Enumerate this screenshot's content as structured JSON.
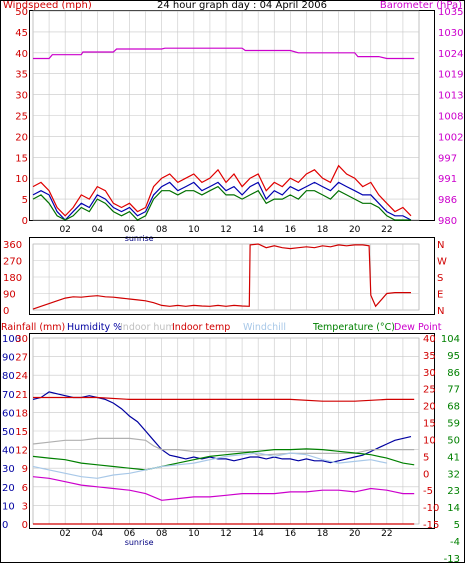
{
  "chart_data": [
    {
      "type": "line",
      "title": "24 hour graph day : 04 April 2006",
      "left_label": "Windspeed (mph)",
      "right_label": "Barometer (hPa)",
      "yticks_left": [
        "0",
        "5",
        "10",
        "15",
        "20",
        "25",
        "30",
        "35",
        "40",
        "45",
        "50"
      ],
      "ylim_left": [
        0,
        50
      ],
      "yticks_right": [
        "980",
        "986",
        "991",
        "997",
        "1002",
        "1008",
        "1013",
        "1019",
        "1024",
        "1030",
        "1035"
      ],
      "ylim_right": [
        980,
        1035
      ],
      "xticks": [
        "02",
        "04",
        "06",
        "08",
        "10",
        "12",
        "14",
        "16",
        "18",
        "20",
        "22"
      ],
      "sunrise_label": "sunrise",
      "grid": true,
      "series": [
        {
          "color": "#e00000",
          "axis": "left",
          "x": [
            0,
            0.5,
            1,
            1.5,
            2,
            2.5,
            3,
            3.5,
            4,
            4.5,
            5,
            5.5,
            6,
            6.5,
            7,
            7.5,
            8,
            8.5,
            9,
            9.5,
            10,
            10.5,
            11,
            11.5,
            12,
            12.5,
            13,
            13.5,
            14,
            14.5,
            15,
            15.5,
            16,
            16.5,
            17,
            17.5,
            18,
            18.5,
            19,
            19.5,
            20,
            20.5,
            21,
            21.5,
            22,
            22.5,
            23,
            23.5
          ],
          "y": [
            8,
            9,
            7,
            3,
            1,
            3,
            6,
            5,
            8,
            7,
            4,
            3,
            4,
            2,
            3,
            8,
            10,
            11,
            9,
            10,
            11,
            9,
            10,
            12,
            9,
            11,
            8,
            10,
            11,
            7,
            9,
            8,
            10,
            9,
            11,
            12,
            10,
            9,
            13,
            11,
            10,
            8,
            9,
            6,
            4,
            2,
            3,
            1
          ]
        },
        {
          "color": "#0000b0",
          "axis": "left",
          "x": [
            0,
            0.5,
            1,
            1.5,
            2,
            2.5,
            3,
            3.5,
            4,
            4.5,
            5,
            5.5,
            6,
            6.5,
            7,
            7.5,
            8,
            8.5,
            9,
            9.5,
            10,
            10.5,
            11,
            11.5,
            12,
            12.5,
            13,
            13.5,
            14,
            14.5,
            15,
            15.5,
            16,
            16.5,
            17,
            17.5,
            18,
            18.5,
            19,
            19.5,
            20,
            20.5,
            21,
            21.5,
            22,
            22.5,
            23,
            23.5
          ],
          "y": [
            6,
            7,
            6,
            2,
            0,
            2,
            4,
            3,
            6,
            5,
            3,
            2,
            3,
            1,
            2,
            6,
            8,
            9,
            7,
            8,
            9,
            7,
            8,
            9,
            7,
            8,
            6,
            8,
            9,
            5,
            7,
            6,
            8,
            7,
            8,
            9,
            8,
            7,
            9,
            8,
            7,
            6,
            6,
            4,
            2,
            1,
            1,
            0
          ]
        },
        {
          "color": "#007000",
          "axis": "left",
          "x": [
            0,
            0.5,
            1,
            1.5,
            2,
            2.5,
            3,
            3.5,
            4,
            4.5,
            5,
            5.5,
            6,
            6.5,
            7,
            7.5,
            8,
            8.5,
            9,
            9.5,
            10,
            10.5,
            11,
            11.5,
            12,
            12.5,
            13,
            13.5,
            14,
            14.5,
            15,
            15.5,
            16,
            16.5,
            17,
            17.5,
            18,
            18.5,
            19,
            19.5,
            20,
            20.5,
            21,
            21.5,
            22,
            22.5,
            23,
            23.5
          ],
          "y": [
            5,
            6,
            4,
            1,
            0,
            1,
            3,
            2,
            5,
            4,
            2,
            1,
            2,
            0,
            1,
            5,
            7,
            7,
            6,
            7,
            7,
            6,
            7,
            8,
            6,
            6,
            5,
            6,
            7,
            4,
            5,
            5,
            6,
            5,
            7,
            7,
            6,
            5,
            7,
            6,
            5,
            4,
            4,
            3,
            1,
            0,
            0,
            0
          ]
        },
        {
          "color": "#cc00cc",
          "axis": "right",
          "x": [
            0,
            1,
            1.2,
            2,
            2.3,
            3,
            3.1,
            5,
            5.2,
            8,
            8.2,
            13,
            13.2,
            16,
            16.5,
            20,
            20.2,
            21.5,
            22,
            23.7
          ],
          "y": [
            1022.5,
            1022.5,
            1023.5,
            1023.5,
            1023.5,
            1023.5,
            1024.2,
            1024.2,
            1025,
            1025,
            1025.2,
            1025.2,
            1024.6,
            1024.6,
            1024,
            1024,
            1023,
            1023,
            1022.5,
            1022.5
          ]
        }
      ]
    },
    {
      "type": "line",
      "right_labels": [
        "N",
        "W",
        "S",
        "E",
        "N"
      ],
      "yticks_left": [
        "0",
        "90",
        "180",
        "270",
        "360"
      ],
      "ylim_left": [
        0,
        360
      ],
      "xticks": [],
      "grid": true,
      "series": [
        {
          "color": "#d00000",
          "axis": "left",
          "x": [
            0,
            0.5,
            1,
            1.5,
            2,
            2.5,
            3,
            3.5,
            4,
            4.5,
            5,
            5.5,
            6,
            6.5,
            7,
            7.5,
            8,
            8.5,
            9,
            9.5,
            10,
            10.5,
            11,
            11.5,
            12,
            12.5,
            13,
            13.45,
            13.5,
            14,
            14.5,
            15,
            15.5,
            16,
            16.5,
            17,
            17.5,
            18,
            18.5,
            19,
            19.5,
            20,
            20.5,
            20.9,
            21,
            21.3,
            21.5,
            22,
            22.5,
            23,
            23.5
          ],
          "y": [
            5,
            20,
            35,
            50,
            65,
            72,
            70,
            75,
            78,
            72,
            70,
            65,
            60,
            55,
            50,
            40,
            25,
            20,
            25,
            20,
            25,
            22,
            20,
            25,
            20,
            25,
            22,
            20,
            355,
            360,
            340,
            350,
            340,
            335,
            340,
            345,
            340,
            350,
            345,
            355,
            350,
            355,
            355,
            350,
            80,
            20,
            40,
            90,
            95,
            95,
            95
          ]
        }
      ]
    },
    {
      "type": "line",
      "left_labels": [
        "Rainfall (mm)",
        "Humidity %",
        "Indoor hum",
        "Indoor temp",
        "Windchill",
        "Temperature (°C)",
        "Dew Point"
      ],
      "label_colors": [
        "#d00000",
        "#0000a0",
        "#c0c0c0",
        "#d00000",
        "#a8c8e8",
        "#008000",
        "#cc00cc"
      ],
      "yticks_hum": [
        "0",
        "10",
        "20",
        "30",
        "40",
        "50",
        "60",
        "70",
        "80",
        "90",
        "100"
      ],
      "yticks_rain": [
        "0",
        "3",
        "6",
        "9",
        "12",
        "15",
        "18",
        "21",
        "24",
        "27",
        "30"
      ],
      "ylim_hum": [
        0,
        100
      ],
      "yticks_temp_c": [
        "-15",
        "-10",
        "-5",
        "0",
        "5",
        "10",
        "15",
        "20",
        "25",
        "30",
        "35",
        "40"
      ],
      "yticks_temp_f": [
        "-13",
        "-4",
        "5",
        "14",
        "23",
        "32",
        "41",
        "50",
        "59",
        "68",
        "77",
        "86",
        "95",
        "104"
      ],
      "ylim_temp": [
        -15,
        40
      ],
      "xticks": [
        "02",
        "04",
        "06",
        "08",
        "10",
        "12",
        "14",
        "16",
        "18",
        "20",
        "22"
      ],
      "sunrise_label": "sunrise",
      "grid": true,
      "series": [
        {
          "color": "#0000a0",
          "axis": "hum",
          "x": [
            0,
            0.5,
            1,
            1.5,
            2,
            2.5,
            3,
            3.5,
            4,
            4.5,
            5,
            5.5,
            6,
            6.5,
            7,
            7.5,
            8,
            8.5,
            9,
            9.5,
            10,
            10.5,
            11,
            11.5,
            12,
            12.5,
            13,
            13.5,
            14,
            14.5,
            15,
            15.5,
            16,
            16.5,
            17,
            17.5,
            18,
            18.5,
            19,
            19.5,
            20,
            20.5,
            21,
            21.5,
            22,
            22.5,
            23,
            23.5
          ],
          "y": [
            67,
            68,
            71,
            70,
            69,
            68,
            68,
            69,
            68,
            67,
            65,
            62,
            58,
            55,
            50,
            45,
            40,
            37,
            36,
            35,
            36,
            35,
            36,
            35,
            35,
            34,
            35,
            36,
            36,
            35,
            36,
            35,
            35,
            34,
            35,
            34,
            34,
            33,
            34,
            35,
            36,
            37,
            39,
            41,
            43,
            45,
            46,
            47
          ]
        },
        {
          "color": "#d00000",
          "axis": "hum",
          "x": [
            0,
            2,
            4,
            6,
            8,
            10,
            12,
            14,
            16,
            18,
            20,
            22,
            23.7
          ],
          "y": [
            68,
            68,
            68,
            67,
            67,
            67,
            67,
            67,
            67,
            66,
            66,
            67,
            67
          ]
        },
        {
          "color": "#b0b0b0",
          "axis": "hum",
          "x": [
            0,
            1,
            2,
            3,
            4,
            5,
            6,
            7,
            7.5,
            8,
            9,
            10,
            12,
            13.5,
            14,
            16,
            18,
            20,
            21,
            22,
            23.7
          ],
          "y": [
            43,
            44,
            45,
            45,
            46,
            46,
            46,
            45,
            42,
            40,
            40,
            39,
            39,
            39,
            37,
            38,
            38,
            38,
            40,
            40,
            40
          ]
        },
        {
          "color": "#008000",
          "axis": "temp",
          "x": [
            0,
            1,
            2,
            3,
            4,
            5,
            6,
            7,
            8,
            9,
            10,
            11,
            12,
            13,
            14,
            15,
            16,
            17,
            18,
            19,
            20,
            21,
            22,
            23,
            23.7
          ],
          "y": [
            5,
            4.5,
            4,
            3,
            2.5,
            2,
            1.5,
            1,
            2,
            3,
            4,
            5,
            5.5,
            6,
            6.5,
            7,
            7,
            7.2,
            7,
            6.5,
            6,
            5.5,
            4.5,
            3,
            2.5
          ]
        },
        {
          "color": "#a8c8e8",
          "axis": "temp",
          "x": [
            0,
            1,
            2,
            3,
            4,
            5,
            6,
            7,
            8,
            9,
            10,
            11,
            12,
            13,
            14,
            15,
            16,
            17,
            18,
            19,
            20,
            21,
            22
          ],
          "y": [
            2,
            1,
            0,
            -1,
            -1.5,
            -0.5,
            0,
            1,
            2,
            2.5,
            3,
            4,
            5,
            5.5,
            6,
            5,
            6,
            5.5,
            4,
            3,
            3.5,
            4,
            3
          ]
        },
        {
          "color": "#cc00cc",
          "axis": "temp",
          "x": [
            0,
            1,
            2,
            3,
            4,
            5,
            6,
            7,
            8,
            9,
            10,
            11,
            12,
            13,
            14,
            15,
            16,
            17,
            18,
            19,
            20,
            21,
            22,
            22.5,
            23,
            23.7
          ],
          "y": [
            -1,
            -1.5,
            -2.5,
            -3.5,
            -4,
            -4.5,
            -5,
            -6,
            -8,
            -7.5,
            -7,
            -7,
            -6.5,
            -6,
            -6,
            -6,
            -5.5,
            -5.5,
            -5,
            -5,
            -5.5,
            -4.5,
            -5,
            -5.5,
            -6,
            -6
          ]
        },
        {
          "color": "#d00000",
          "axis": "rain",
          "x": [
            0,
            23.7
          ],
          "y": [
            0,
            0
          ]
        }
      ]
    }
  ]
}
